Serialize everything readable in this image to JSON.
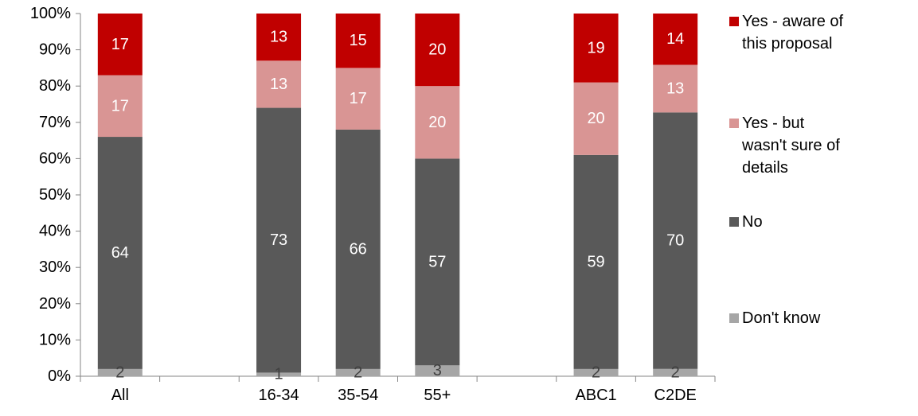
{
  "chart_data": {
    "type": "bar",
    "stacked": true,
    "percent_stacked": true,
    "title": "",
    "xlabel": "",
    "ylabel": "",
    "ylim": [
      0,
      100
    ],
    "y_ticks": [
      "0%",
      "10%",
      "20%",
      "30%",
      "40%",
      "50%",
      "60%",
      "70%",
      "80%",
      "90%",
      "100%"
    ],
    "categories": [
      "All",
      "",
      "16-34",
      "35-54",
      "55+",
      "",
      "ABC1",
      "C2DE"
    ],
    "legend_position": "right",
    "grid": false,
    "series": [
      {
        "name": "Don't know",
        "color": "#a6a6a6",
        "label_color": "#404040",
        "values": [
          2,
          null,
          1,
          2,
          3,
          null,
          2,
          2
        ]
      },
      {
        "name": "No",
        "color": "#595959",
        "label_color": "#ffffff",
        "values": [
          64,
          null,
          73,
          66,
          57,
          null,
          59,
          70
        ]
      },
      {
        "name": "Yes - but wasn't sure of details",
        "color": "#d99594",
        "label_color": "#ffffff",
        "values": [
          17,
          null,
          13,
          17,
          20,
          null,
          20,
          13
        ]
      },
      {
        "name": "Yes - aware of this proposal",
        "color": "#c00000",
        "label_color": "#ffffff",
        "values": [
          17,
          null,
          13,
          15,
          20,
          null,
          19,
          14
        ]
      }
    ],
    "legend": [
      {
        "lines": [
          "Yes - aware of",
          "this proposal"
        ],
        "color": "#c00000"
      },
      {
        "lines": [
          "Yes - but",
          "wasn't sure of",
          "details"
        ],
        "color": "#d99594"
      },
      {
        "lines": [
          "No"
        ],
        "color": "#595959"
      },
      {
        "lines": [
          "Don't know"
        ],
        "color": "#a6a6a6"
      }
    ]
  }
}
